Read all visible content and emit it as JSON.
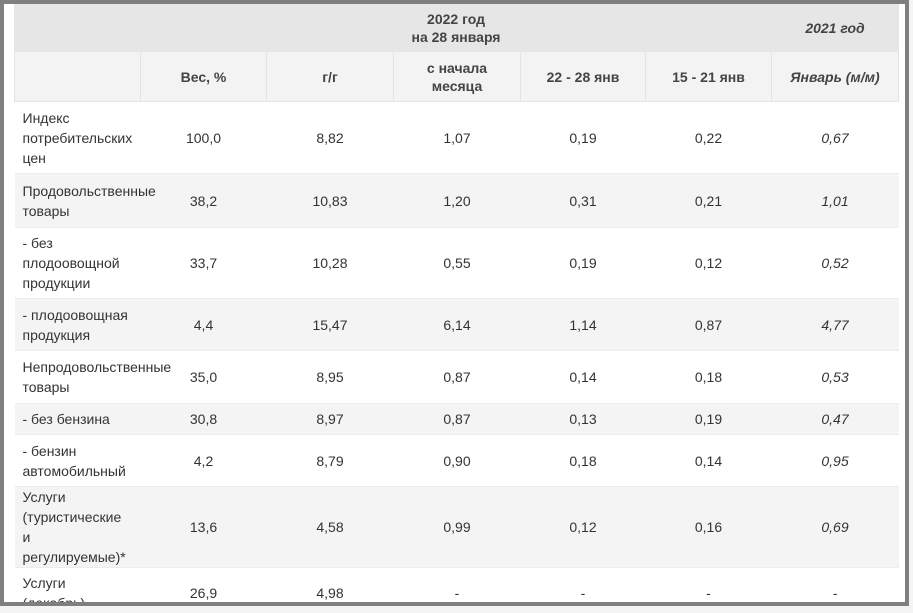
{
  "header": {
    "group_2022_line1": "2022 год",
    "group_2022_line2": "на 28 января",
    "group_2021": "2021 год",
    "columns": [
      "",
      "Вес, %",
      "г/г",
      "с начала месяца",
      "22 - 28 янв",
      "15 - 21 янв",
      "Январь (м/м)"
    ],
    "col3_line1": "с начала",
    "col3_line2": "месяца"
  },
  "rows": [
    {
      "label": [
        "Индекс",
        "потребительских",
        "цен"
      ],
      "weight": "100,0",
      "yoy": "8,82",
      "mtd": "1,07",
      "w1": "0,19",
      "w2": "0,22",
      "jan2021": "0,67"
    },
    {
      "label": [
        "Продовольственные",
        "товары"
      ],
      "weight": "38,2",
      "yoy": "10,83",
      "mtd": "1,20",
      "w1": "0,31",
      "w2": "0,21",
      "jan2021": "1,01"
    },
    {
      "label": [
        "- без",
        "плодоовощной",
        "продукции"
      ],
      "weight": "33,7",
      "yoy": "10,28",
      "mtd": "0,55",
      "w1": "0,19",
      "w2": "0,12",
      "jan2021": "0,52"
    },
    {
      "label": [
        "- плодоовощная",
        "продукция"
      ],
      "weight": "4,4",
      "yoy": "15,47",
      "mtd": "6,14",
      "w1": "1,14",
      "w2": "0,87",
      "jan2021": "4,77"
    },
    {
      "label": [
        "Непродовольственные",
        "товары"
      ],
      "weight": "35,0",
      "yoy": "8,95",
      "mtd": "0,87",
      "w1": "0,14",
      "w2": "0,18",
      "jan2021": "0,53"
    },
    {
      "label": [
        "- без бензина"
      ],
      "weight": "30,8",
      "yoy": "8,97",
      "mtd": "0,87",
      "w1": "0,13",
      "w2": "0,19",
      "jan2021": "0,47"
    },
    {
      "label": [
        "- бензин",
        "автомобильный"
      ],
      "weight": "4,2",
      "yoy": "8,79",
      "mtd": "0,90",
      "w1": "0,18",
      "w2": "0,14",
      "jan2021": "0,95"
    },
    {
      "label": [
        "Услуги",
        "(туристические",
        "и регулируемые)*"
      ],
      "weight": "13,6",
      "yoy": "4,58",
      "mtd": "0,99",
      "w1": "0,12",
      "w2": "0,16",
      "jan2021": "0,69"
    },
    {
      "label": [
        "Услуги",
        "(декабрь)"
      ],
      "weight": "26,9",
      "yoy": "4,98",
      "mtd": "-",
      "w1": "-",
      "w2": "-",
      "jan2021": "-"
    }
  ]
}
